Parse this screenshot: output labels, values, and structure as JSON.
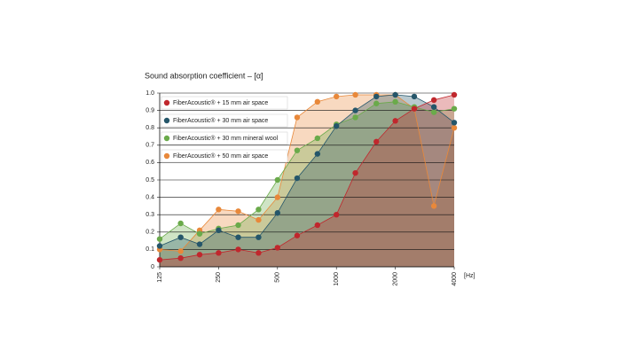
{
  "chart_data": {
    "type": "area",
    "title": "Sound absorption coefficient – [α]",
    "x_label": "[Hz]",
    "x": [
      125,
      160,
      200,
      250,
      315,
      400,
      500,
      630,
      800,
      1000,
      1250,
      1600,
      2000,
      2500,
      3150,
      4000
    ],
    "xlim": [
      125,
      4000
    ],
    "xticks": [
      125,
      250,
      500,
      1000,
      2000,
      4000
    ],
    "xscale": "log",
    "ylim": [
      0,
      1
    ],
    "yticks": [
      0,
      0.1,
      0.2,
      0.3,
      0.4,
      0.5,
      0.6,
      0.7,
      0.8,
      0.9,
      {
        "value": 1,
        "label": "1.0"
      }
    ],
    "grid": true,
    "legend": "top-left",
    "series": [
      {
        "name": "FiberAcoustic® + 15 mm air space",
        "color": "#c0272d",
        "values": [
          0.04,
          0.05,
          0.07,
          0.08,
          0.1,
          0.08,
          0.11,
          0.18,
          0.24,
          0.3,
          0.54,
          0.72,
          0.84,
          0.91,
          0.96,
          0.99
        ]
      },
      {
        "name": "FiberAcoustic® + 30 mm air space",
        "color": "#25566a",
        "values": [
          0.12,
          0.17,
          0.13,
          0.21,
          0.17,
          0.17,
          0.31,
          0.51,
          0.65,
          0.81,
          0.9,
          0.98,
          0.99,
          0.98,
          0.92,
          0.83
        ]
      },
      {
        "name": "FiberAcoustic® + 30 mm mineral wool",
        "color": "#6aaa4a",
        "values": [
          0.16,
          0.25,
          0.19,
          0.22,
          0.24,
          0.33,
          0.5,
          0.67,
          0.74,
          0.82,
          0.86,
          0.94,
          0.95,
          0.92,
          0.89,
          0.91
        ]
      },
      {
        "name": "FiberAcoustic® + 50 mm air space",
        "color": "#e8883a",
        "values": [
          0.1,
          0.09,
          0.21,
          0.33,
          0.32,
          0.27,
          0.4,
          0.86,
          0.95,
          0.98,
          0.99,
          0.99,
          0.99,
          0.91,
          0.35,
          0.8
        ]
      }
    ]
  }
}
